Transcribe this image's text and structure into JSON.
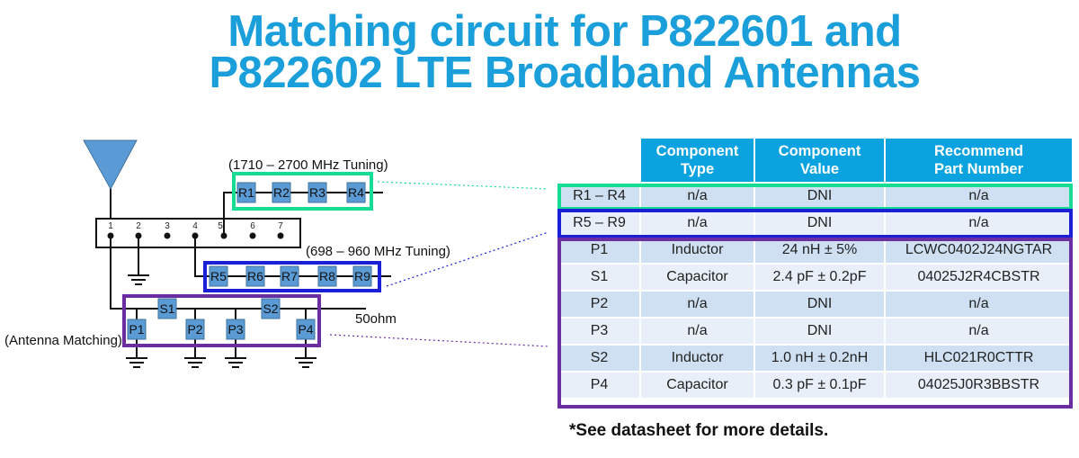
{
  "title": {
    "line1": "Matching circuit for P822601 and",
    "line2": "P822602 LTE Broadband Antennas"
  },
  "colors": {
    "title": "#1a9fdb",
    "header": "#0aa2df",
    "high_band_frame": "#17dc93",
    "low_band_frame": "#1b1fd6",
    "matching_frame": "#6a2ea0",
    "component": "#5b9bd5"
  },
  "schematic": {
    "antenna_icon": "triangle-antenna",
    "pins": [
      "1",
      "2",
      "3",
      "4",
      "5",
      "6",
      "7"
    ],
    "high_band_label": "(1710 – 2700 MHz Tuning)",
    "low_band_label": "(698 – 960 MHz Tuning)",
    "matching_label": "(Antenna Matching)",
    "port_label": "50ohm",
    "high_band_components": [
      "R1",
      "R2",
      "R3",
      "R4"
    ],
    "low_band_components": [
      "R5",
      "R6",
      "R7",
      "R8",
      "R9"
    ],
    "series_components": [
      "S1",
      "S2"
    ],
    "shunt_components": [
      "P1",
      "P2",
      "P3",
      "P4"
    ]
  },
  "table": {
    "headers": [
      "",
      "Component Type",
      "Component Value",
      "Recommend Part Number"
    ],
    "rows": [
      [
        "R1 – R4",
        "n/a",
        "DNI",
        "n/a"
      ],
      [
        "R5 – R9",
        "n/a",
        "DNI",
        "n/a"
      ],
      [
        "P1",
        "Inductor",
        "24 nH ± 5%",
        "LCWC0402J24NGTAR"
      ],
      [
        "S1",
        "Capacitor",
        "2.4 pF ± 0.2pF",
        "04025J2R4CBSTR"
      ],
      [
        "P2",
        "n/a",
        "DNI",
        "n/a"
      ],
      [
        "P3",
        "n/a",
        "DNI",
        "n/a"
      ],
      [
        "S2",
        "Inductor",
        "1.0 nH ± 0.2nH",
        "HLC021R0CTTR"
      ],
      [
        "P4",
        "Capacitor",
        "0.3 pF ± 0.1pF",
        "04025J0R3BBSTR"
      ]
    ]
  },
  "note": "*See datasheet for more details."
}
